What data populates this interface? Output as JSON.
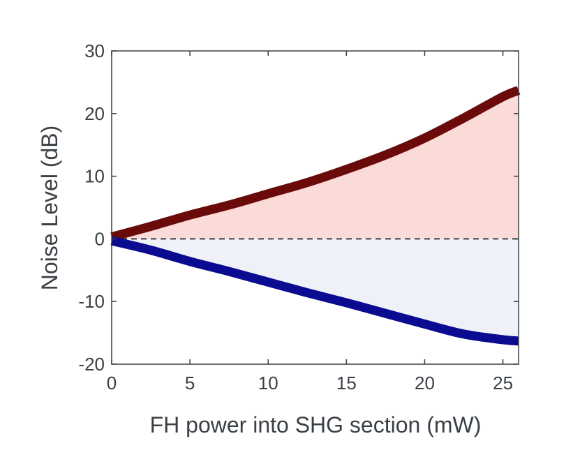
{
  "chart_data": {
    "type": "line",
    "title": "",
    "xlabel": "FH power into SHG section (mW)",
    "ylabel": "Noise Level (dB)",
    "xlim": [
      0,
      26
    ],
    "ylim": [
      -20,
      30
    ],
    "xticks": [
      0,
      5,
      10,
      15,
      20,
      25
    ],
    "yticks": [
      -20,
      -10,
      0,
      10,
      20,
      30
    ],
    "xtick_labels": [
      "0",
      "5",
      "10",
      "15",
      "20",
      "25"
    ],
    "ytick_labels": [
      "-20",
      "-10",
      "0",
      "10",
      "20",
      "30"
    ],
    "grid": false,
    "series": [
      {
        "color": "#6b0a0a",
        "fill_color": "#fadbd8",
        "x": [
          0,
          2.5,
          5,
          7.5,
          10,
          12.5,
          15,
          17.5,
          20,
          22.5,
          25,
          26
        ],
        "y": [
          0.3,
          2.0,
          3.8,
          5.4,
          7.2,
          9.0,
          11.1,
          13.4,
          16.1,
          19.3,
          22.7,
          23.7
        ]
      },
      {
        "color": "#0b0b91",
        "fill_color": "#eef1f7",
        "x": [
          0,
          2.5,
          5,
          7.5,
          10,
          12.5,
          15,
          17.5,
          20,
          22.5,
          25,
          26
        ],
        "y": [
          -0.3,
          -1.8,
          -3.6,
          -5.2,
          -6.9,
          -8.6,
          -10.2,
          -11.9,
          -13.6,
          -15.2,
          -16.1,
          -16.3
        ]
      }
    ],
    "reference_line": {
      "y": 0,
      "style": "dashed",
      "color": "#3a4046"
    }
  }
}
